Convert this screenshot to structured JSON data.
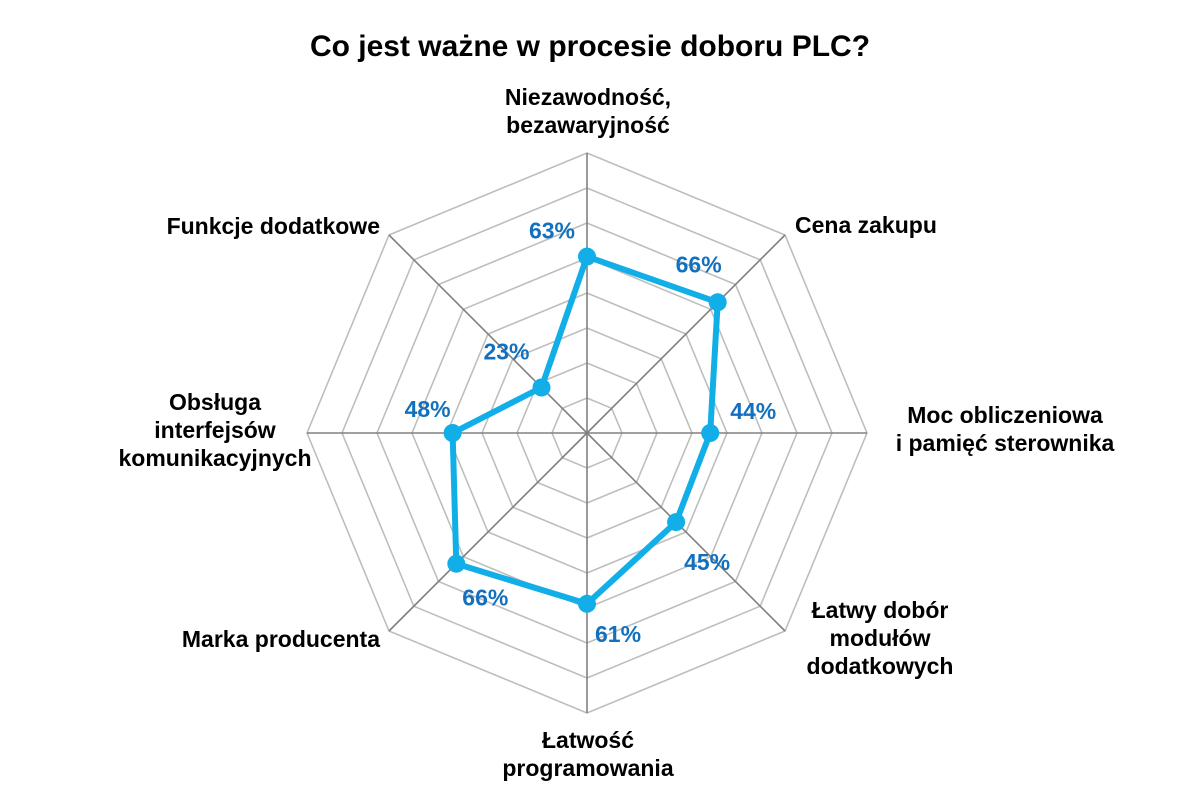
{
  "colors": {
    "series_line": "#12AEE8",
    "value_label": "#1270BE",
    "grid": "#BEBEBE",
    "spoke": "#808080"
  },
  "chart_data": {
    "type": "radar",
    "title": "Co jest ważne w procesie doboru PLC?",
    "categories": [
      [
        "Niezawodność,",
        "bezawaryjność"
      ],
      [
        "Cena zakupu"
      ],
      [
        "Moc obliczeniowa",
        "i pamięć sterownika"
      ],
      [
        "Łatwy dobór",
        "modułów",
        "dodatkowych"
      ],
      [
        "Łatwość",
        "programowania"
      ],
      [
        "Marka producenta"
      ],
      [
        "Obsługa",
        "interfejsów",
        "komunikacyjnych"
      ],
      [
        "Funkcje dodatkowe"
      ]
    ],
    "series": [
      {
        "values": [
          63,
          66,
          44,
          45,
          61,
          66,
          48,
          23
        ],
        "labels": [
          "63%",
          "66%",
          "44%",
          "45%",
          "61%",
          "66%",
          "48%",
          "23%"
        ]
      }
    ],
    "rlim": [
      0,
      100
    ],
    "grid_rings": 8,
    "grid": true,
    "legend": "none"
  }
}
